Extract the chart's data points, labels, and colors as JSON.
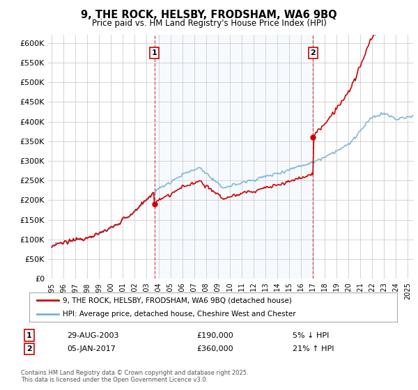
{
  "title": "9, THE ROCK, HELSBY, FRODSHAM, WA6 9BQ",
  "subtitle": "Price paid vs. HM Land Registry's House Price Index (HPI)",
  "ylabel_ticks": [
    "£0",
    "£50K",
    "£100K",
    "£150K",
    "£200K",
    "£250K",
    "£300K",
    "£350K",
    "£400K",
    "£450K",
    "£500K",
    "£550K",
    "£600K"
  ],
  "ytick_values": [
    0,
    50000,
    100000,
    150000,
    200000,
    250000,
    300000,
    350000,
    400000,
    450000,
    500000,
    550000,
    600000
  ],
  "ylim": [
    0,
    620000
  ],
  "xlim_start": 1994.7,
  "xlim_end": 2025.5,
  "xticks": [
    1995,
    1996,
    1997,
    1998,
    1999,
    2000,
    2001,
    2002,
    2003,
    2004,
    2005,
    2006,
    2007,
    2008,
    2009,
    2010,
    2011,
    2012,
    2013,
    2014,
    2015,
    2016,
    2017,
    2018,
    2019,
    2020,
    2021,
    2022,
    2023,
    2024,
    2025
  ],
  "sale1_x": 2003.66,
  "sale1_y": 190000,
  "sale1_label": "1",
  "sale1_date": "29-AUG-2003",
  "sale1_price": "£190,000",
  "sale1_hpi": "5% ↓ HPI",
  "sale2_x": 2017.01,
  "sale2_y": 360000,
  "sale2_label": "2",
  "sale2_date": "05-JAN-2017",
  "sale2_price": "£360,000",
  "sale2_hpi": "21% ↑ HPI",
  "property_color": "#cc0000",
  "hpi_color": "#7ab0d4",
  "dashed_color": "#cc0000",
  "background_color": "#ffffff",
  "plot_bg_color": "#ffffff",
  "shade_color": "#ddeeff",
  "grid_color": "#cccccc",
  "legend_label1": "9, THE ROCK, HELSBY, FRODSHAM, WA6 9BQ (detached house)",
  "legend_label2": "HPI: Average price, detached house, Cheshire West and Chester",
  "footer": "Contains HM Land Registry data © Crown copyright and database right 2025.\nThis data is licensed under the Open Government Licence v3.0."
}
